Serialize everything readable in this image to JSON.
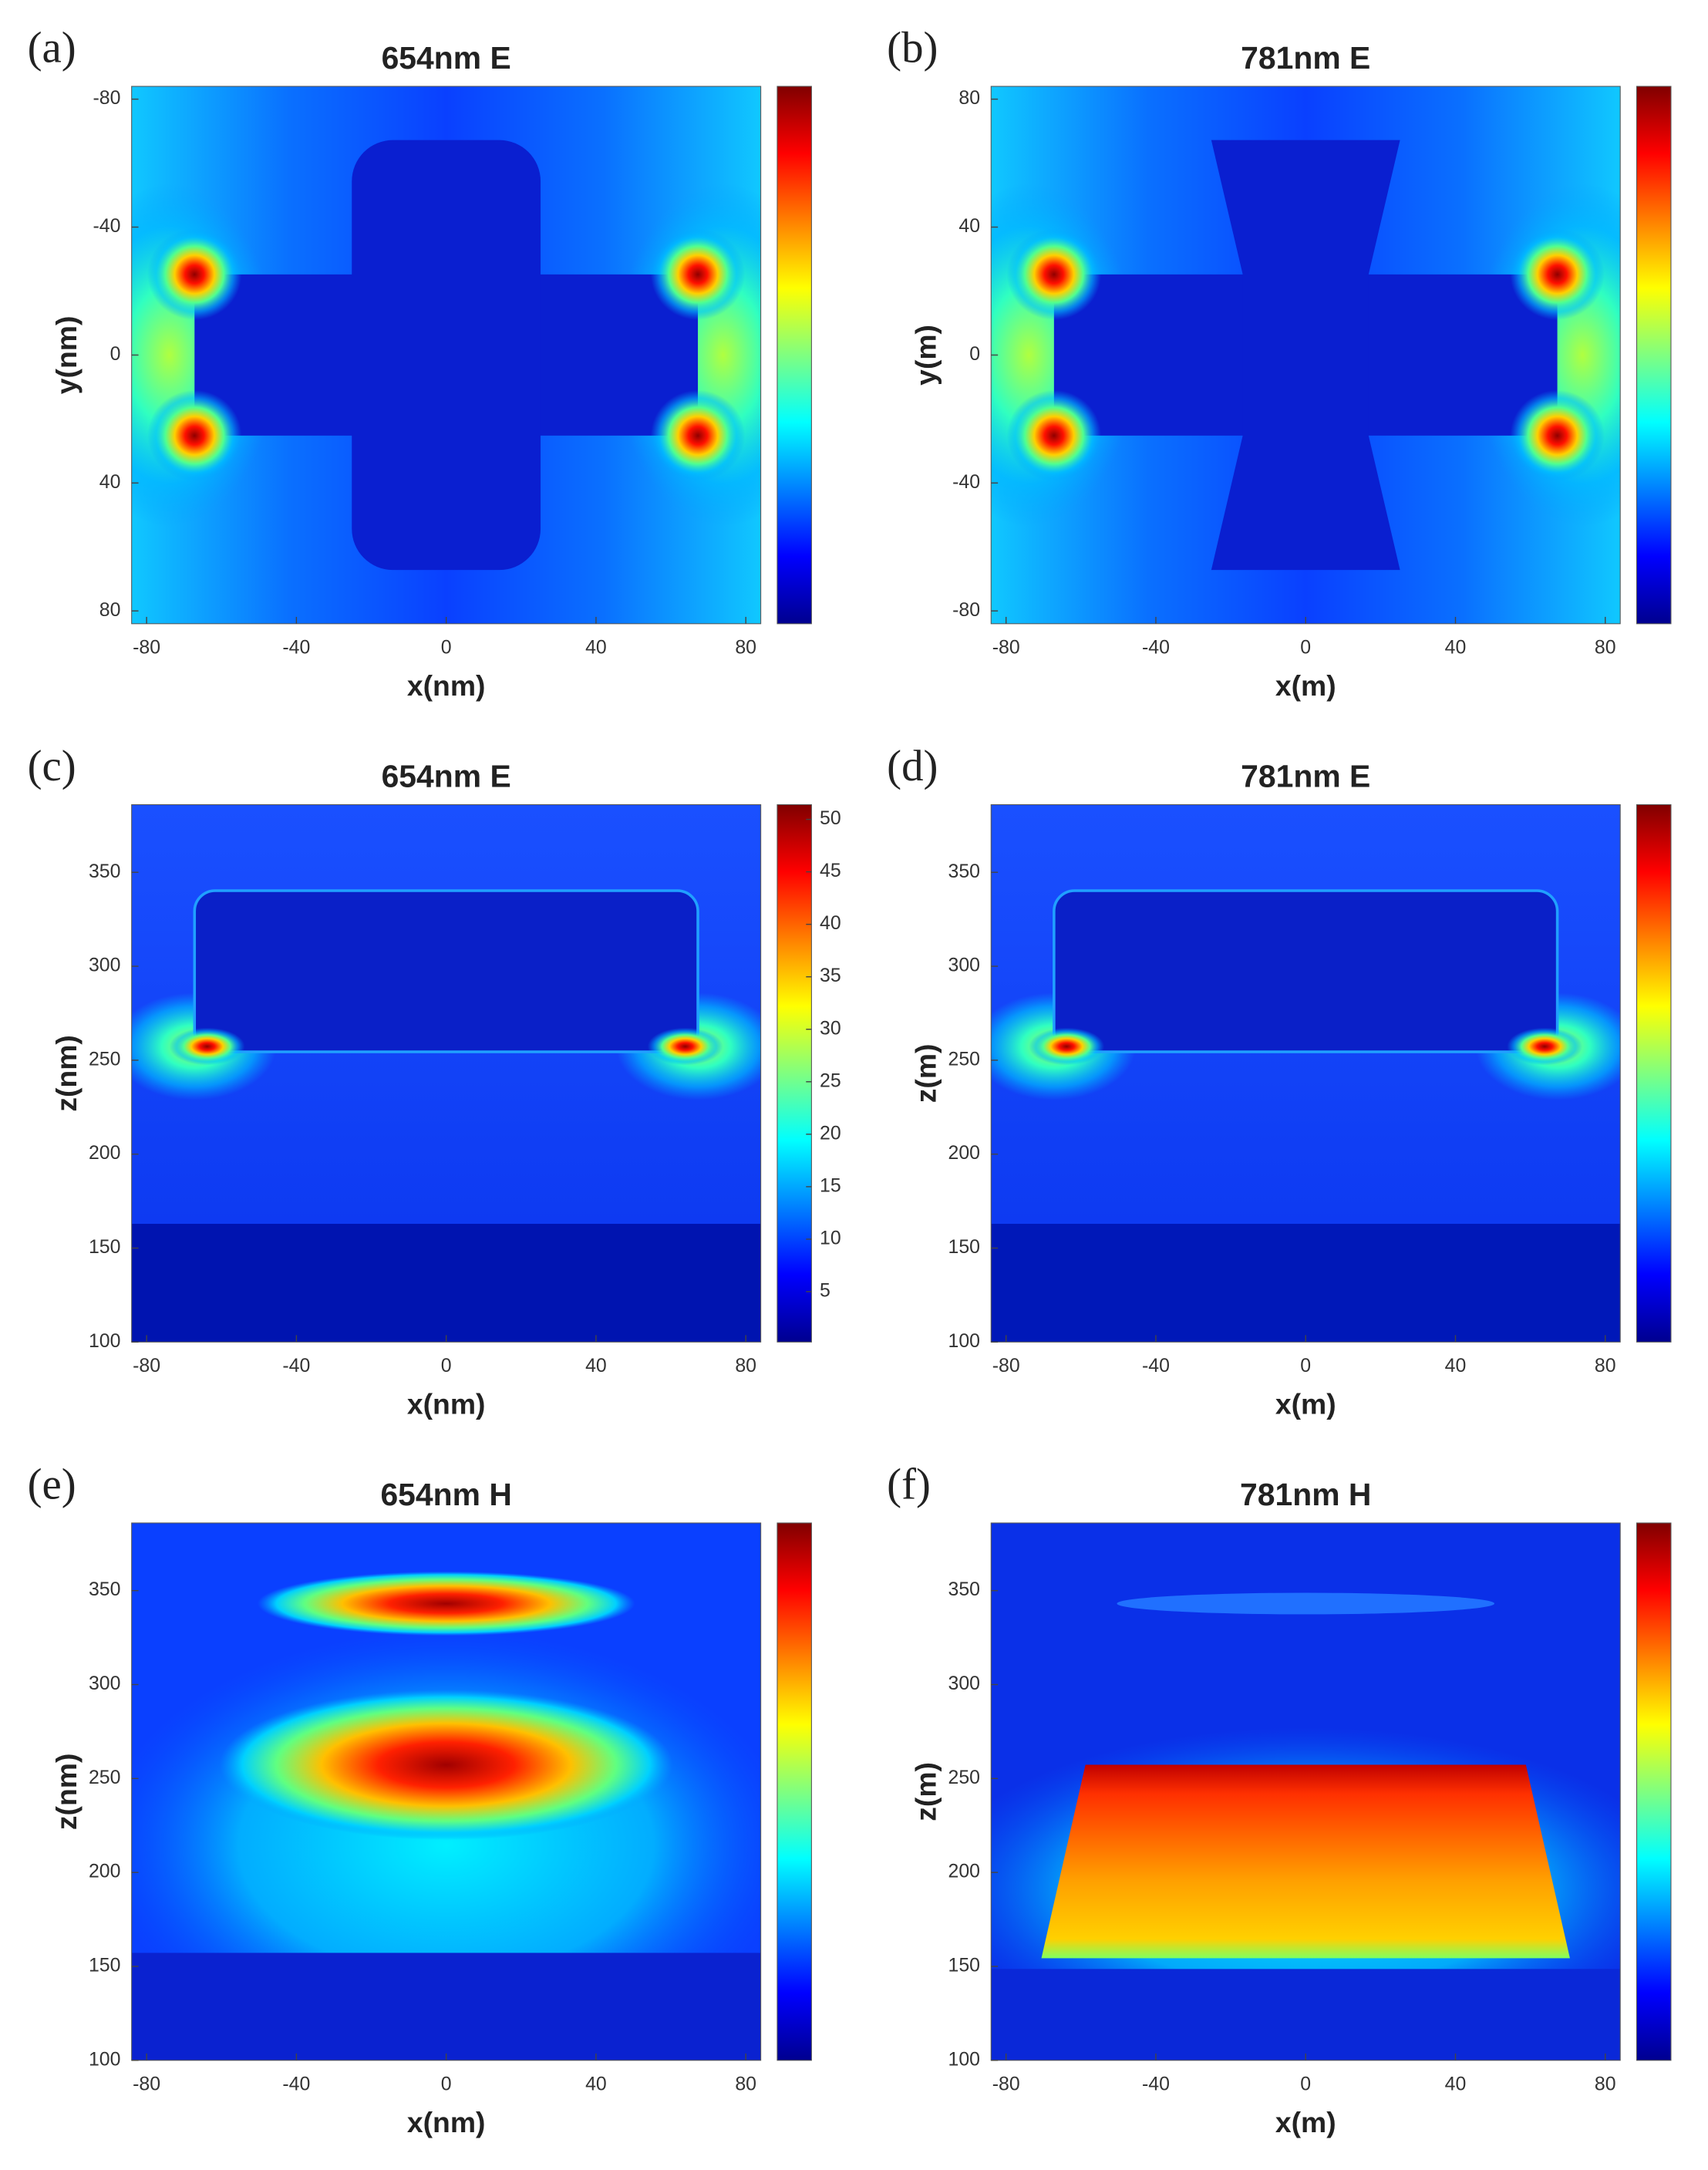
{
  "chart_data": [
    {
      "type": "heatmap",
      "panel_label": "(a)",
      "title": "654nm E",
      "x_label": "x(nm)",
      "y_label": "y(nm)",
      "colormap": "jet",
      "xlim": [
        -84,
        84
      ],
      "xticks": [
        -80,
        -40,
        0,
        40,
        80
      ],
      "ylim": [
        84,
        -84
      ],
      "yticks": [
        -80,
        -40,
        0,
        40,
        80
      ]
    },
    {
      "type": "heatmap",
      "panel_label": "(b)",
      "title": "781nm E",
      "x_label": "x(m)",
      "y_label": "y(m)",
      "colormap": "jet",
      "xlim": [
        -84,
        84
      ],
      "xticks": [
        -80,
        -40,
        0,
        40,
        80
      ],
      "ylim": [
        -84,
        84
      ],
      "yticks": [
        -80,
        -40,
        0,
        40,
        80
      ]
    },
    {
      "type": "heatmap",
      "panel_label": "(c)",
      "title": "654nm E",
      "x_label": "x(nm)",
      "y_label": "z(nm)",
      "colormap": "jet",
      "xlim": [
        -84,
        84
      ],
      "xticks": [
        -80,
        -40,
        0,
        40,
        80
      ],
      "ylim": [
        100,
        386
      ],
      "yticks": [
        100,
        150,
        200,
        250,
        300,
        350
      ],
      "colorbar_lim": [
        0.2,
        51.4
      ],
      "colorbar_ticks": [
        5,
        10,
        15,
        20,
        25,
        30,
        35,
        40,
        45,
        50
      ]
    },
    {
      "type": "heatmap",
      "panel_label": "(d)",
      "title": "781nm E",
      "x_label": "x(m)",
      "y_label": "z(m)",
      "colormap": "jet",
      "xlim": [
        -84,
        84
      ],
      "xticks": [
        -80,
        -40,
        0,
        40,
        80
      ],
      "ylim": [
        100,
        386
      ],
      "yticks": [
        100,
        150,
        200,
        250,
        300,
        350
      ]
    },
    {
      "type": "heatmap",
      "panel_label": "(e)",
      "title": "654nm H",
      "x_label": "x(nm)",
      "y_label": "z(nm)",
      "colormap": "jet",
      "xlim": [
        -84,
        84
      ],
      "xticks": [
        -80,
        -40,
        0,
        40,
        80
      ],
      "ylim": [
        100,
        386
      ],
      "yticks": [
        100,
        150,
        200,
        250,
        300,
        350
      ]
    },
    {
      "type": "heatmap",
      "panel_label": "(f)",
      "title": "781nm H",
      "x_label": "x(m)",
      "y_label": "z(m)",
      "colormap": "jet",
      "xlim": [
        -84,
        84
      ],
      "xticks": [
        -80,
        -40,
        0,
        40,
        80
      ],
      "ylim": [
        100,
        386
      ],
      "yticks": [
        100,
        150,
        200,
        250,
        300,
        350
      ]
    }
  ]
}
